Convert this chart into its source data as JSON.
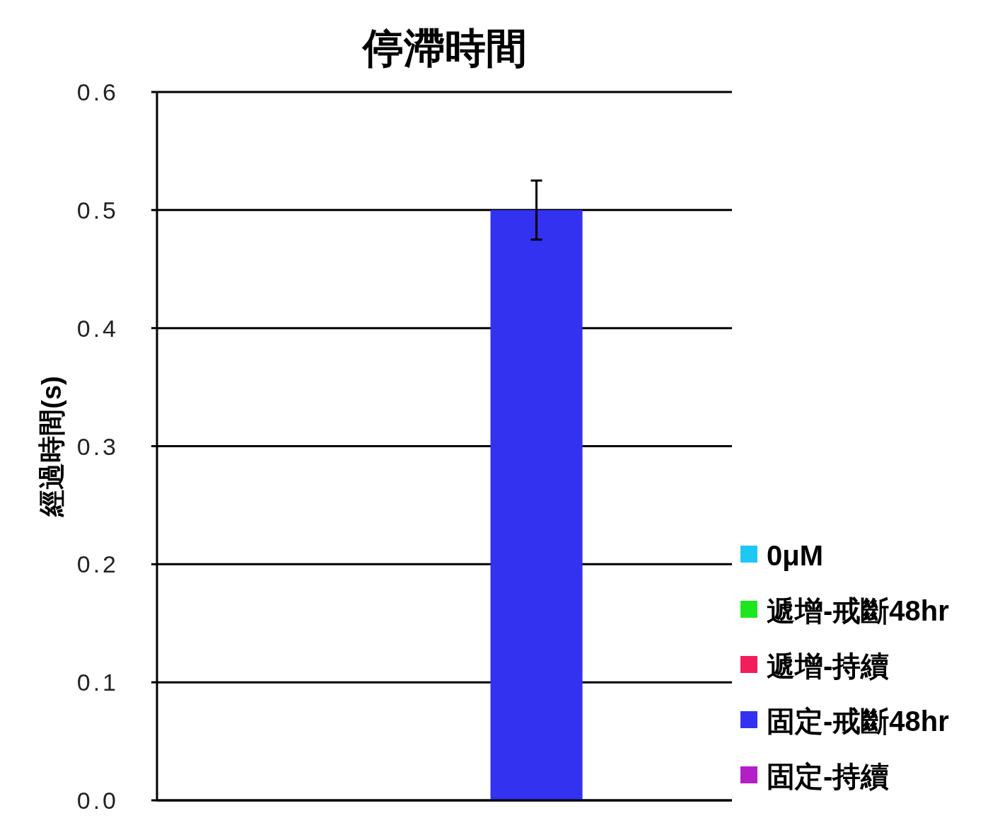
{
  "chart_data": {
    "type": "bar",
    "title": "停滯時間",
    "ylabel": "經過時間(s)",
    "categories": [
      null
    ],
    "series": [
      {
        "name": "0μM",
        "color": "#1ec8f5",
        "values": [
          null
        ]
      },
      {
        "name": "遞增-戒斷48hr",
        "color": "#1ee61e",
        "values": [
          null
        ]
      },
      {
        "name": "遞增-持續",
        "color": "#f01e5a",
        "values": [
          null
        ]
      },
      {
        "name": "固定-戒斷48hr",
        "color": "#3232f0",
        "values": [
          0.5
        ],
        "errors": [
          0.025
        ]
      },
      {
        "name": "固定-持續",
        "color": "#b41ec8",
        "values": [
          null
        ]
      }
    ],
    "ylim": [
      0,
      0.6
    ],
    "yticks": [
      {
        "value": 0,
        "label": "0.0"
      },
      0.1,
      0.2,
      0.3,
      0.4,
      0.5,
      0.6
    ],
    "grid": "y",
    "legend": "bottom right"
  }
}
